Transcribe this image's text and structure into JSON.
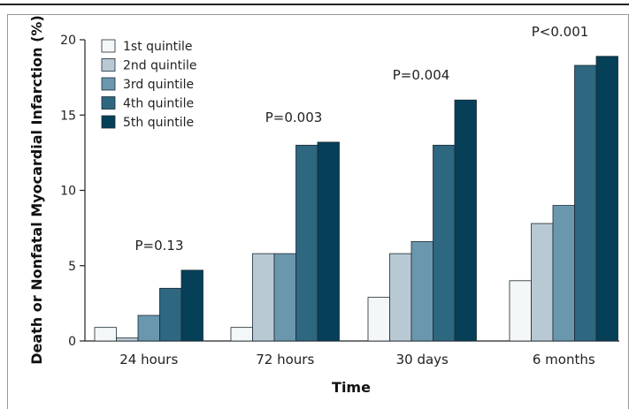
{
  "chart_data": {
    "type": "bar",
    "title": "",
    "xlabel": "Time",
    "ylabel": "Death or Nonfatal Myocardial Infarction (%)",
    "ylim": [
      0,
      20
    ],
    "yticks": [
      0,
      5,
      10,
      15,
      20
    ],
    "grid": false,
    "legend_position": "top-left",
    "categories": [
      "24 hours",
      "72 hours",
      "30 days",
      "6 months"
    ],
    "series": [
      {
        "name": "1st quintile",
        "color": "#f4f7f8",
        "values": [
          0.9,
          0.9,
          2.9,
          4.0
        ]
      },
      {
        "name": "2nd quintile",
        "color": "#b8c9d4",
        "values": [
          0.2,
          5.8,
          5.8,
          7.8
        ]
      },
      {
        "name": "3rd quintile",
        "color": "#6a97ad",
        "values": [
          1.7,
          5.8,
          6.6,
          9.0
        ]
      },
      {
        "name": "4th quintile",
        "color": "#2d6780",
        "values": [
          3.5,
          13.0,
          13.0,
          18.3
        ]
      },
      {
        "name": "5th quintile",
        "color": "#063f58",
        "values": [
          4.7,
          13.2,
          16.0,
          18.9
        ]
      }
    ],
    "annotations": [
      "P=0.13",
      "P=0.003",
      "P=0.004",
      "P<0.001"
    ]
  }
}
